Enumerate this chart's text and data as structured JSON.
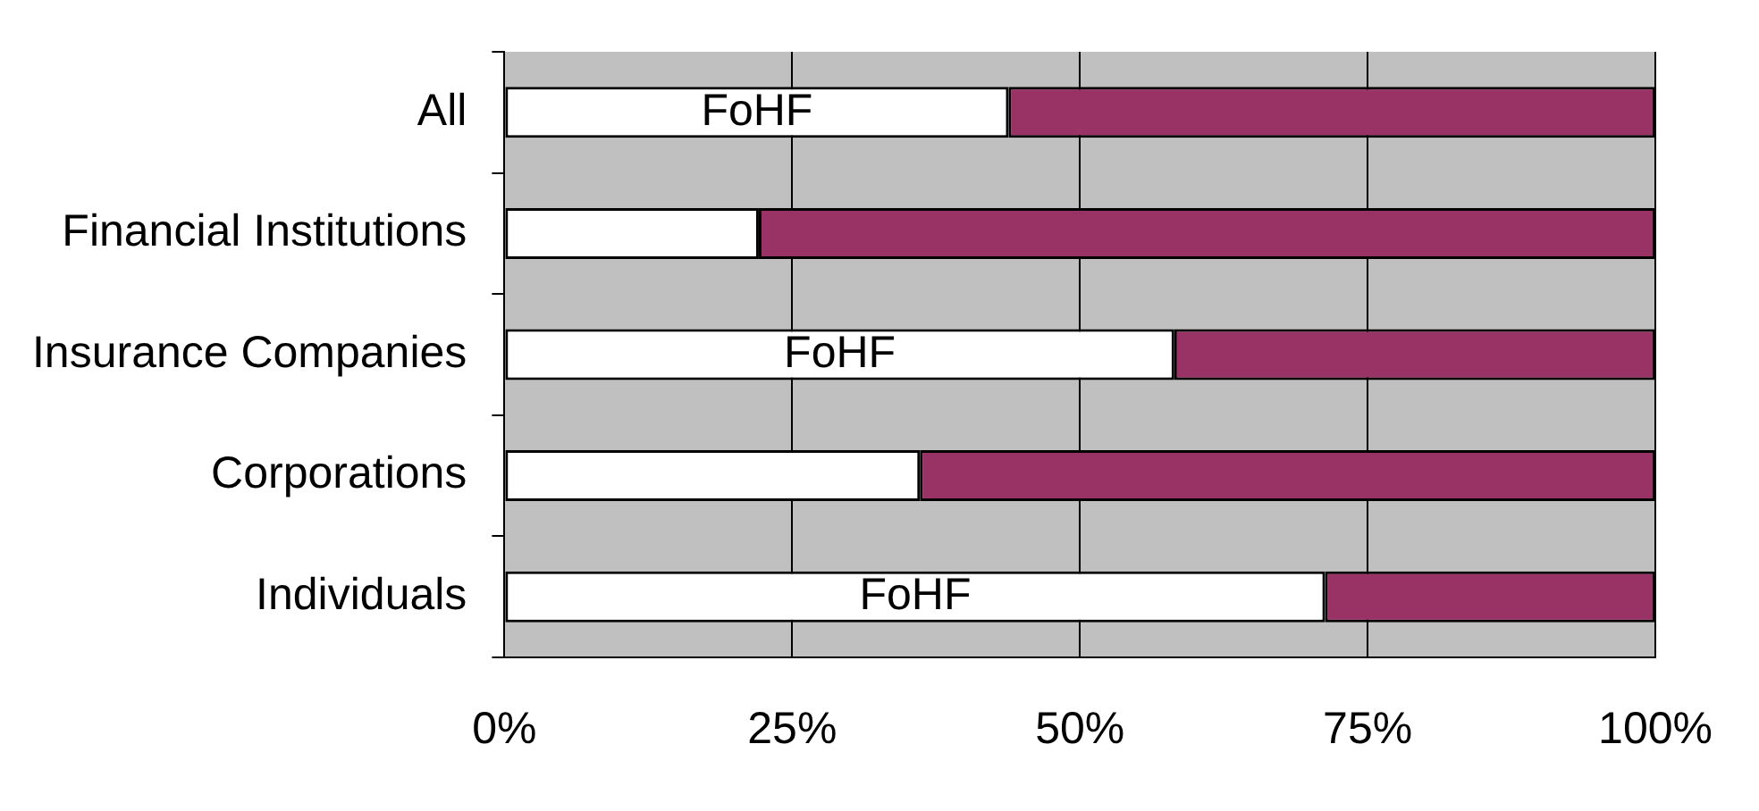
{
  "chart_data": {
    "type": "bar",
    "orientation": "horizontal",
    "stacked": true,
    "categories": [
      "All",
      "Financial Institutions",
      "Insurance Companies",
      "Corporations",
      "Individuals"
    ],
    "series": [
      {
        "color": "#ffffff",
        "values": [
          43.8,
          22.1,
          58.2,
          36.1,
          71.3
        ],
        "value_labels": [
          "FoHF",
          null,
          "FoHF",
          null,
          "FoHF"
        ]
      },
      {
        "color": "#993366",
        "values": [
          56.2,
          77.9,
          41.8,
          63.9,
          28.7
        ]
      }
    ],
    "xlim": [
      0,
      100
    ],
    "xticks": [
      {
        "value": 0,
        "label": "0%"
      },
      {
        "value": 25,
        "label": "25%"
      },
      {
        "value": 50,
        "label": "50%"
      },
      {
        "value": 75,
        "label": "75%"
      },
      {
        "value": 100,
        "label": "100%"
      }
    ],
    "grid": "x",
    "legend": false
  }
}
